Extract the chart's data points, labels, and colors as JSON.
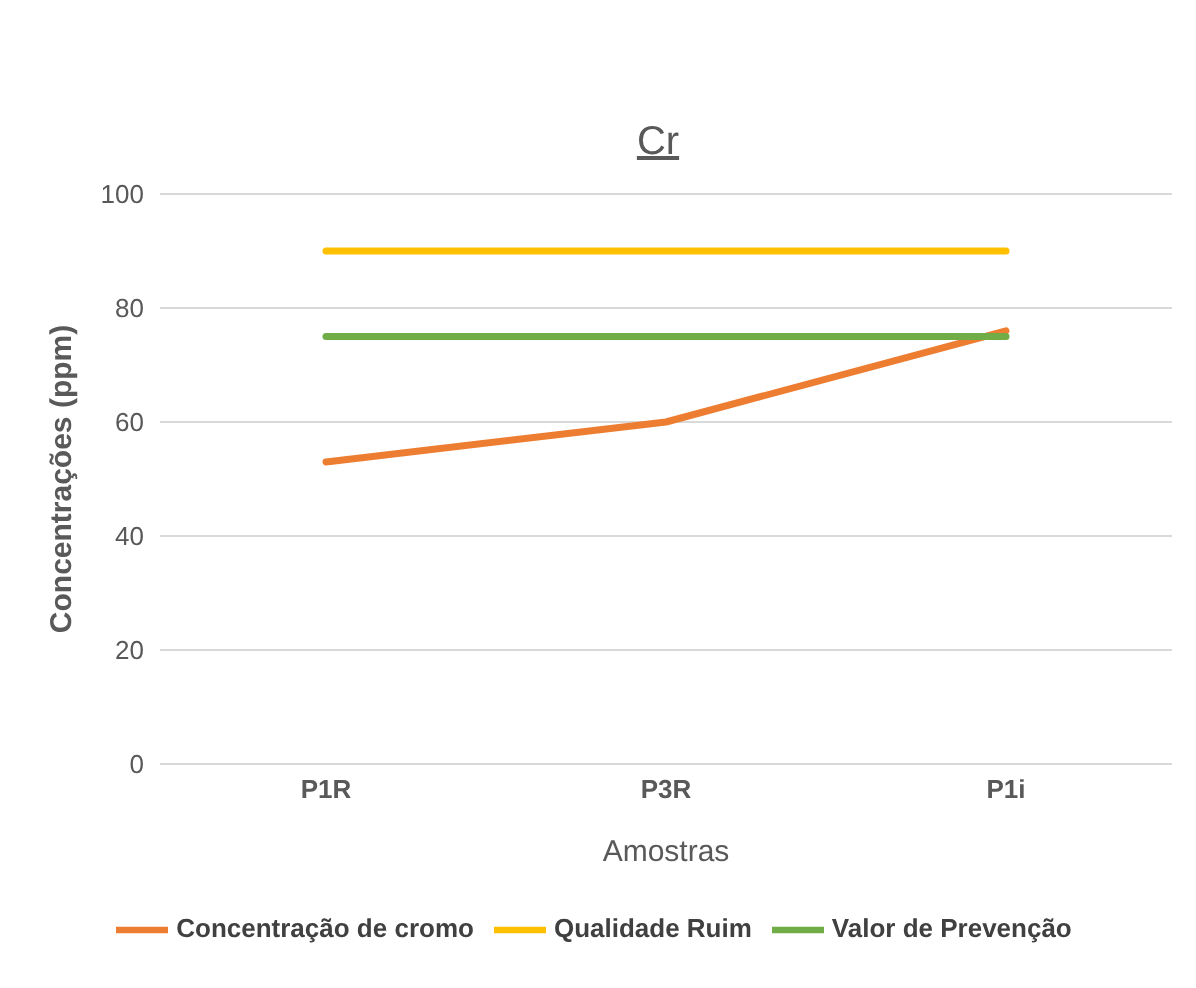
{
  "chart_data": {
    "type": "line",
    "title": "Cr",
    "xlabel": "Amostras",
    "ylabel": "Concentrações (ppm)",
    "categories": [
      "P1R",
      "P3R",
      "P1i"
    ],
    "series": [
      {
        "name": "Concentração de cromo",
        "color": "#ed7d31",
        "values": [
          53,
          60,
          76
        ]
      },
      {
        "name": "Qualidade Ruim",
        "color": "#ffc000",
        "values": [
          90,
          90,
          90
        ]
      },
      {
        "name": "Valor de Prevenção",
        "color": "#70ad47",
        "values": [
          75,
          75,
          75
        ]
      }
    ],
    "ylim": [
      0,
      100
    ],
    "yticks": [
      0,
      20,
      40,
      60,
      80,
      100
    ],
    "grid": "y",
    "legend": "bottom",
    "marker": "none",
    "line_style": "solid"
  }
}
